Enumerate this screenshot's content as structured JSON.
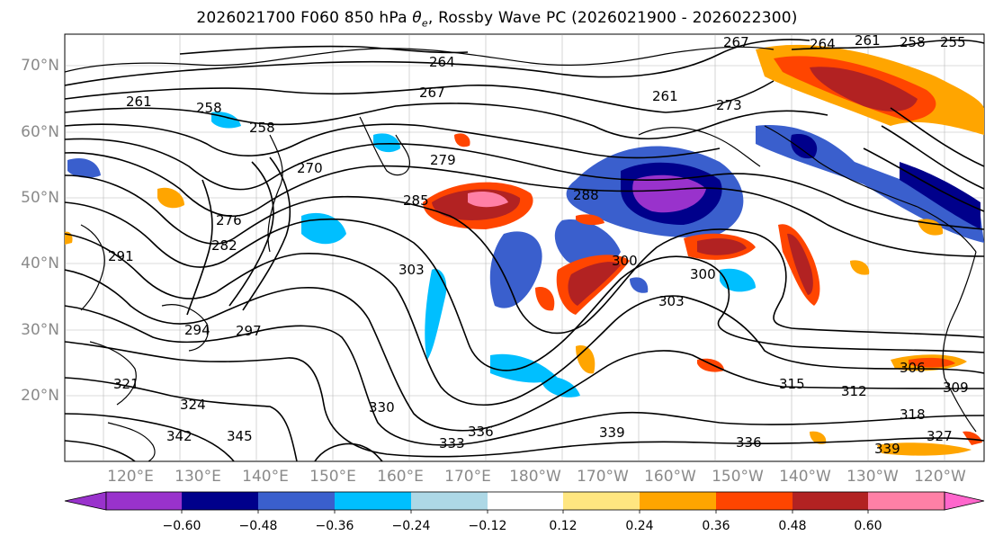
{
  "title": {
    "prefix": "2026021700 F060 850 hPa ",
    "theta": "θ",
    "theta_sub": "e",
    "suffix": ", Rossby Wave PC (2026021900 - 2026022300)"
  },
  "lat_labels": [
    "70°N",
    "60°N",
    "50°N",
    "40°N",
    "30°N",
    "20°N"
  ],
  "lon_labels": [
    "120°E",
    "130°E",
    "140°E",
    "150°E",
    "160°E",
    "170°E",
    "180°W",
    "170°W",
    "160°W",
    "150°W",
    "140°W",
    "130°W",
    "120°W"
  ],
  "contour_labels": [
    "261",
    "258",
    "258",
    "264",
    "267",
    "267",
    "264",
    "261",
    "258",
    "255",
    "261",
    "273",
    "270",
    "279",
    "276",
    "282",
    "285",
    "288",
    "291",
    "294",
    "297",
    "300",
    "303",
    "303",
    "300",
    "306",
    "309",
    "312",
    "315",
    "318",
    "321",
    "324",
    "327",
    "330",
    "333",
    "336",
    "336",
    "339",
    "339",
    "342",
    "345"
  ],
  "colorbar": {
    "ticks": [
      "−0.60",
      "−0.48",
      "−0.36",
      "−0.24",
      "−0.12",
      "0.12",
      "0.24",
      "0.36",
      "0.48",
      "0.60"
    ],
    "colors": [
      "#9932cc",
      "#00008b",
      "#3a5fcd",
      "#00bfff",
      "#add8e6",
      "#ffffff",
      "#ffe680",
      "#ffa500",
      "#ff4500",
      "#b22222",
      "#ff80a6",
      "#ff66cc"
    ]
  }
}
